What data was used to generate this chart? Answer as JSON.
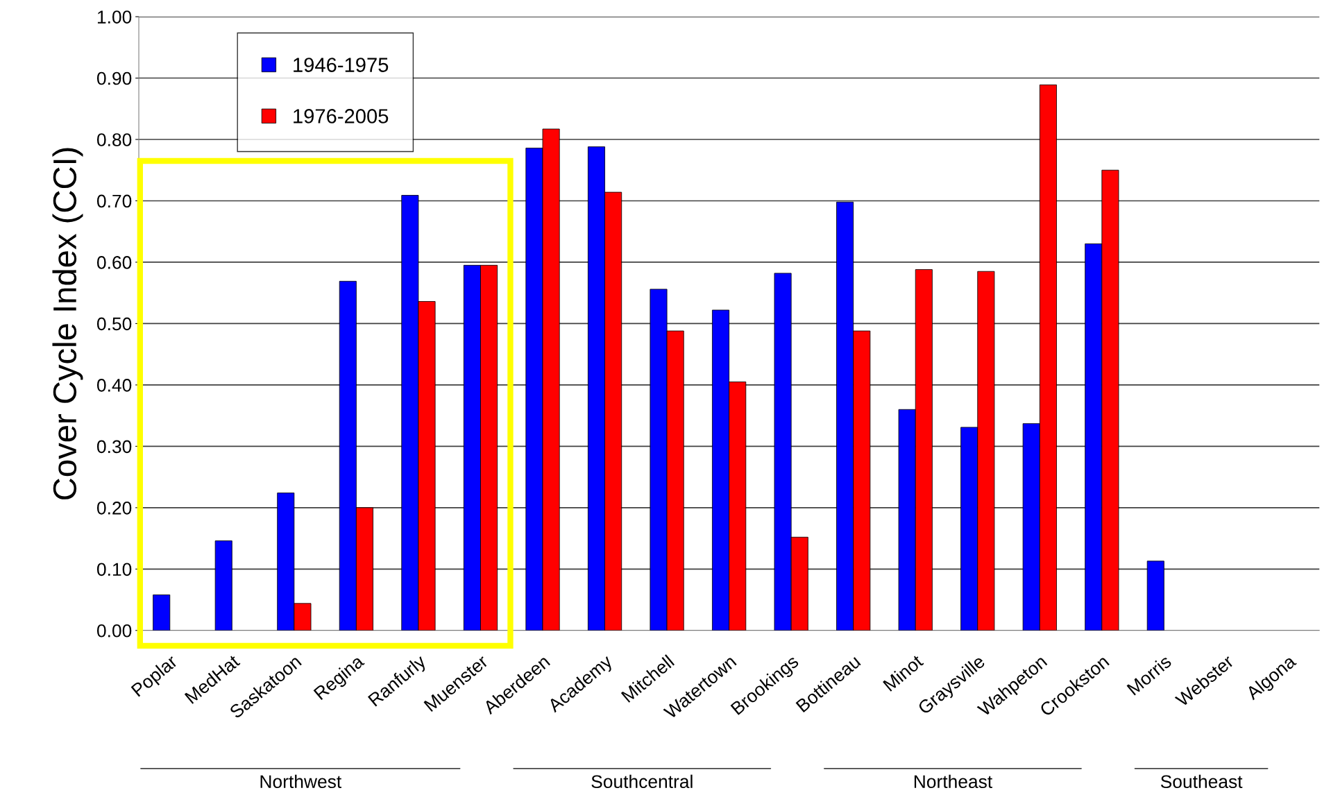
{
  "chart_data": {
    "type": "bar",
    "ylabel": "Cover Cycle Index (CCI)",
    "categories": [
      "Poplar",
      "MedHat",
      "Saskatoon",
      "Regina",
      "Ranfurly",
      "Muenster",
      "Aberdeen",
      "Academy",
      "Mitchell",
      "Watertown",
      "Brookings",
      "Bottineau",
      "Minot",
      "Graysville",
      "Wahpeton",
      "Crookston",
      "Morris",
      "Webster",
      "Algona"
    ],
    "series": [
      {
        "name": "1946-1975",
        "color": "#0000ff",
        "values": [
          0.058,
          0.146,
          0.224,
          0.569,
          0.709,
          0.595,
          0.786,
          0.788,
          0.556,
          0.522,
          0.582,
          0.698,
          0.36,
          0.331,
          0.337,
          0.63,
          0.113,
          null,
          null
        ]
      },
      {
        "name": "1976-2005",
        "color": "#ff0000",
        "values": [
          null,
          null,
          0.044,
          0.2,
          0.536,
          0.595,
          0.817,
          0.714,
          0.488,
          0.405,
          0.152,
          0.488,
          0.588,
          0.585,
          0.889,
          0.75,
          null,
          null,
          null
        ]
      }
    ],
    "ylim": [
      0,
      1
    ],
    "yticks": [
      {
        "value": 0,
        "label": "0.00"
      },
      {
        "value": 0.1,
        "label": "0.10"
      },
      {
        "value": 0.2,
        "label": "0.20"
      },
      {
        "value": 0.3,
        "label": "0.30"
      },
      {
        "value": 0.4,
        "label": "0.40"
      },
      {
        "value": 0.5,
        "label": "0.50"
      },
      {
        "value": 0.6,
        "label": "0.60"
      },
      {
        "value": 0.7,
        "label": "0.70"
      },
      {
        "value": 0.8,
        "label": "0.80"
      },
      {
        "value": 0.9,
        "label": "0.90"
      },
      {
        "value": 1,
        "label": "1.00"
      }
    ],
    "grid": "y",
    "legend": "top left",
    "annotations": [
      "Northwest",
      "Southcentral",
      "Northeast",
      "Southeast"
    ]
  }
}
